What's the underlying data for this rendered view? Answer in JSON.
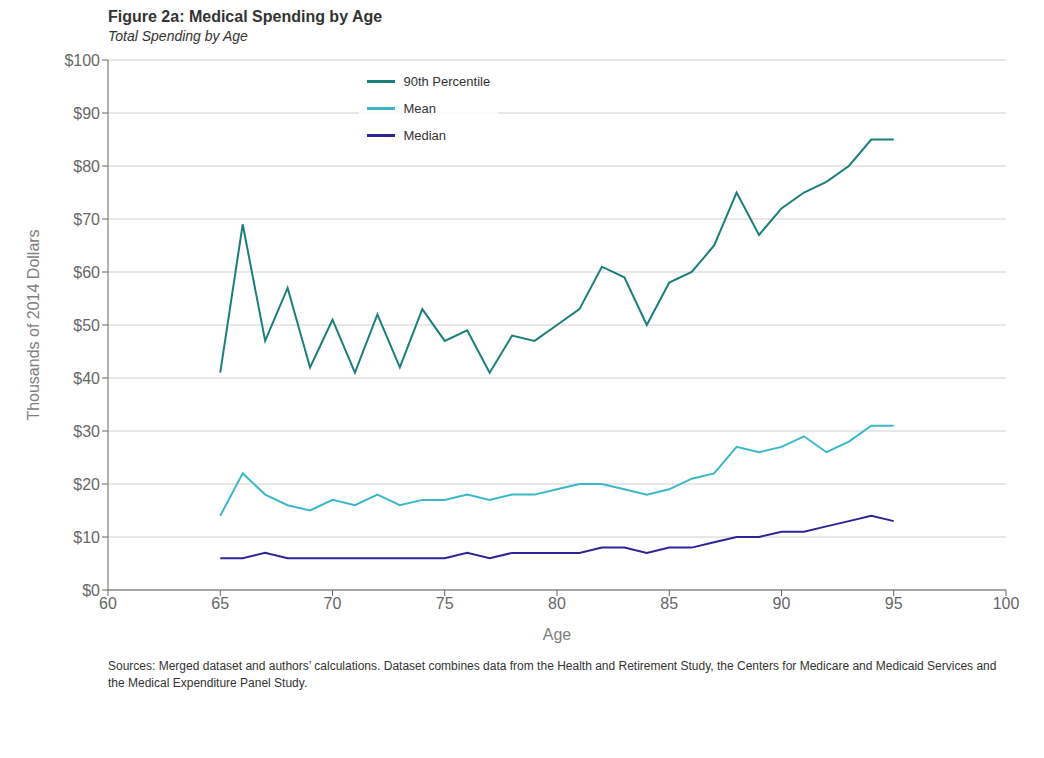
{
  "chart_data": {
    "type": "line",
    "title": "Figure 2a: Medical Spending by Age",
    "subtitle": "Total Spending by Age",
    "x_label": "Age",
    "y_label": "Thousands of 2014 Dollars",
    "footnote": "Sources: Merged dataset and authors’ calculations. Dataset combines data from the Health and Retirement Study, the Centers for Medicare and Medicaid Services and the Medical Expenditure Panel Study.",
    "x": [
      65,
      66,
      67,
      68,
      69,
      70,
      71,
      72,
      73,
      74,
      75,
      76,
      77,
      78,
      79,
      80,
      81,
      82,
      83,
      84,
      85,
      86,
      87,
      88,
      89,
      90,
      91,
      92,
      93,
      94,
      95
    ],
    "series": [
      {
        "name": "90th Percentile",
        "color": "#1a7f7a",
        "values": [
          41,
          69,
          47,
          57,
          42,
          51,
          41,
          52,
          42,
          53,
          47,
          49,
          41,
          48,
          47,
          50,
          53,
          61,
          59,
          50,
          58,
          60,
          65,
          75,
          67,
          72,
          75,
          77,
          80,
          85,
          85
        ]
      },
      {
        "name": "Mean",
        "color": "#3ab8c8",
        "values": [
          14,
          22,
          18,
          16,
          15,
          17,
          16,
          18,
          16,
          17,
          17,
          18,
          17,
          18,
          18,
          19,
          20,
          20,
          19,
          18,
          19,
          21,
          22,
          27,
          26,
          27,
          29,
          26,
          28,
          31,
          31
        ]
      },
      {
        "name": "Median",
        "color": "#2e2594",
        "values": [
          6,
          6,
          7,
          6,
          6,
          6,
          6,
          6,
          6,
          6,
          6,
          7,
          6,
          7,
          7,
          7,
          7,
          8,
          8,
          7,
          8,
          8,
          9,
          10,
          10,
          11,
          11,
          12,
          13,
          14,
          13
        ]
      }
    ],
    "xlim": [
      60,
      100
    ],
    "ylim": [
      0,
      100
    ],
    "xticks": [
      60,
      65,
      70,
      75,
      80,
      85,
      90,
      95,
      100
    ],
    "yticks": [
      {
        "value": 0,
        "label": "$0"
      },
      {
        "value": 10,
        "label": "$10"
      },
      {
        "value": 20,
        "label": "$20"
      },
      {
        "value": 30,
        "label": "$30"
      },
      {
        "value": 40,
        "label": "$40"
      },
      {
        "value": 50,
        "label": "$50"
      },
      {
        "value": 60,
        "label": "$60"
      },
      {
        "value": 70,
        "label": "$70"
      },
      {
        "value": 80,
        "label": "$80"
      },
      {
        "value": 90,
        "label": "$90"
      },
      {
        "value": 100,
        "label": "$100"
      }
    ],
    "grid": "y",
    "legend": "upper left"
  }
}
